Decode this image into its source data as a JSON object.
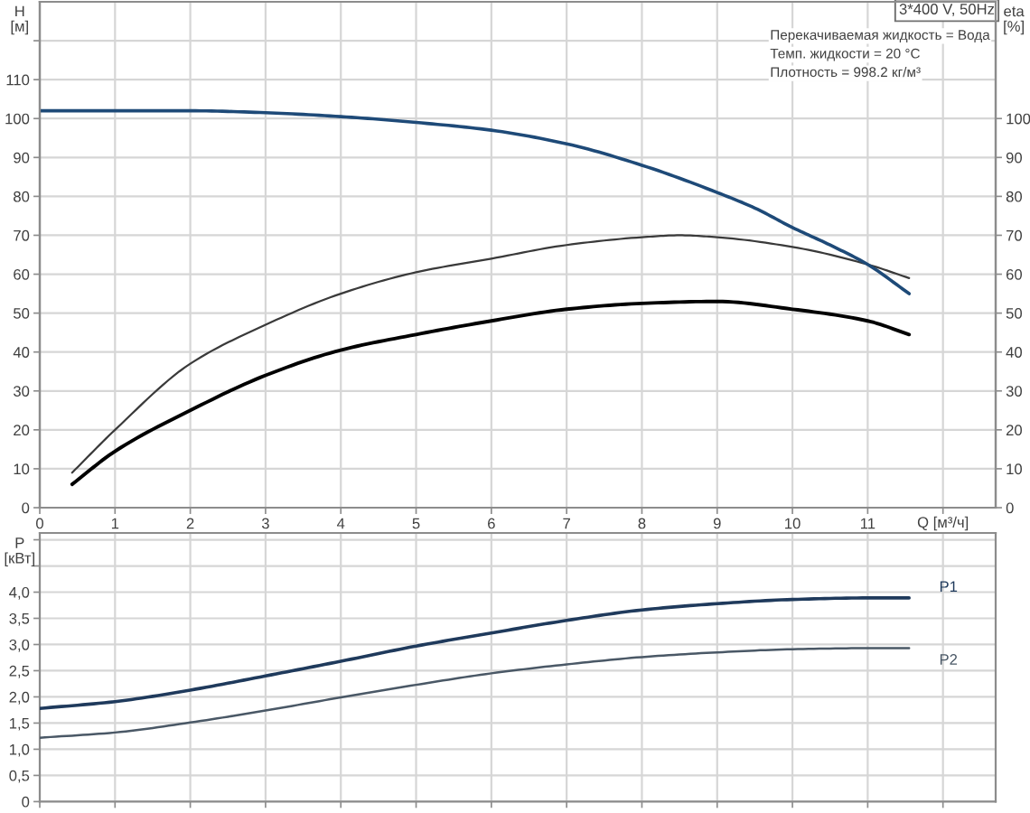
{
  "chart_data": [
    {
      "type": "line",
      "title": "3*400 V, 50Hz",
      "annotations": [
        "Перекачиваемая жидкость = Вода",
        "Темп. жидкости = 20 °C",
        "Плотность = 998.2 кг/м³"
      ],
      "xlabel": "Q [м³/ч]",
      "ylabel": "H [м]",
      "y2label": "eta [%]",
      "xlim": [
        0,
        12.7
      ],
      "xticks": [
        0,
        1,
        2,
        3,
        4,
        5,
        6,
        7,
        8,
        9,
        10,
        11,
        {
          "value": 12,
          "label": null
        }
      ],
      "ylim": [
        0,
        130
      ],
      "yticks": [
        0,
        10,
        20,
        30,
        40,
        50,
        60,
        70,
        80,
        90,
        100,
        110,
        {
          "value": 120,
          "label": null
        }
      ],
      "y2lim": [
        0,
        130
      ],
      "y2ticks": [
        0,
        10,
        20,
        30,
        40,
        50,
        60,
        70,
        80,
        90,
        100
      ],
      "grid": true,
      "series": [
        {
          "color": "#1e4a78",
          "x": [
            0,
            1,
            2,
            3,
            4,
            5,
            6,
            7,
            8,
            9,
            9.5,
            10,
            10.5,
            11,
            11.55
          ],
          "values": [
            102,
            102,
            102,
            101.5,
            100.5,
            99,
            97,
            93.5,
            88,
            81,
            77,
            72,
            67.5,
            62.5,
            55
          ]
        },
        {
          "color": "#3a3a3a",
          "axis": "y2",
          "x": [
            0.43,
            1,
            2,
            3,
            4,
            5,
            6,
            7,
            8,
            8.5,
            9,
            10,
            11,
            11.55
          ],
          "values": [
            9,
            20,
            37,
            47,
            55,
            60.5,
            64,
            67.5,
            69.5,
            70,
            69.5,
            67,
            62.5,
            59
          ]
        },
        {
          "color": "#000000",
          "axis": "y2",
          "x": [
            0.43,
            1,
            2,
            3,
            4,
            5,
            6,
            7,
            8,
            9,
            10,
            11,
            11.55
          ],
          "values": [
            6,
            14.5,
            25,
            34,
            40.5,
            44.5,
            48,
            51,
            52.5,
            53,
            51,
            48,
            44.5
          ]
        }
      ]
    },
    {
      "type": "line",
      "ylabel": "P [кВт]",
      "tick_labels": "y",
      "xlim": [
        0,
        12.7
      ],
      "xticks": [
        0,
        1,
        2,
        3,
        4,
        5,
        6,
        7,
        8,
        9,
        10,
        11,
        12
      ],
      "ylim": [
        0,
        5.13
      ],
      "yticks": [
        0,
        {
          "value": 0.5,
          "label": "0,5"
        },
        {
          "value": 1.0,
          "label": "1,0"
        },
        {
          "value": 1.5,
          "label": "1,5"
        },
        {
          "value": 2.0,
          "label": "2,0"
        },
        {
          "value": 2.5,
          "label": "2,5"
        },
        {
          "value": 3.0,
          "label": "3,0"
        },
        {
          "value": 3.5,
          "label": "3,5"
        },
        {
          "value": 4.0,
          "label": "4,0"
        },
        {
          "value": 4.5,
          "label": null
        },
        {
          "value": 5.0,
          "label": null
        }
      ],
      "grid": true,
      "series": [
        {
          "name": "P1",
          "color": "#1f3a5c",
          "x": [
            0,
            1,
            2,
            3,
            4,
            5,
            6,
            7,
            8,
            9,
            10,
            11,
            11.55
          ],
          "values": [
            1.78,
            1.91,
            2.13,
            2.4,
            2.68,
            2.97,
            3.22,
            3.46,
            3.66,
            3.78,
            3.86,
            3.89,
            3.89
          ]
        },
        {
          "name": "P2",
          "color": "#4a5866",
          "x": [
            0,
            1,
            2,
            3,
            4,
            5,
            6,
            7,
            8,
            9,
            10,
            11,
            11.55
          ],
          "values": [
            1.22,
            1.32,
            1.51,
            1.74,
            1.99,
            2.23,
            2.45,
            2.62,
            2.76,
            2.85,
            2.91,
            2.93,
            2.93
          ]
        }
      ]
    }
  ]
}
